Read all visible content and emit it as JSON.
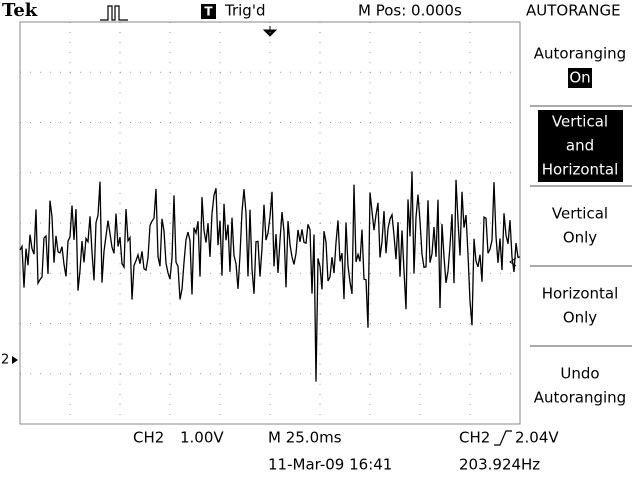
{
  "header": {
    "brand": "Tek",
    "trigger_icon": "T",
    "trigger_status": "Trig'd",
    "position": "M Pos: 0.000s",
    "menu_title": "AUTORANGE"
  },
  "menu": [
    {
      "lines": [
        "Autoranging"
      ],
      "value": "On"
    },
    {
      "lines": [
        "Vertical",
        "and",
        "Horizontal"
      ]
    },
    {
      "lines": [
        "Vertical",
        "Only"
      ]
    },
    {
      "lines": [
        "Horizontal",
        "Only"
      ]
    },
    {
      "lines": [
        "Undo",
        "Autoranging"
      ]
    }
  ],
  "channel_marker": "2",
  "footer": {
    "channel": "CH2",
    "scale": "1.00V",
    "timebase": "M 25.0ms",
    "trigger_channel": "CH2",
    "trigger_level": "2.04V",
    "date": "11-Mar-09 16:41",
    "frequency": "203.924Hz"
  }
}
